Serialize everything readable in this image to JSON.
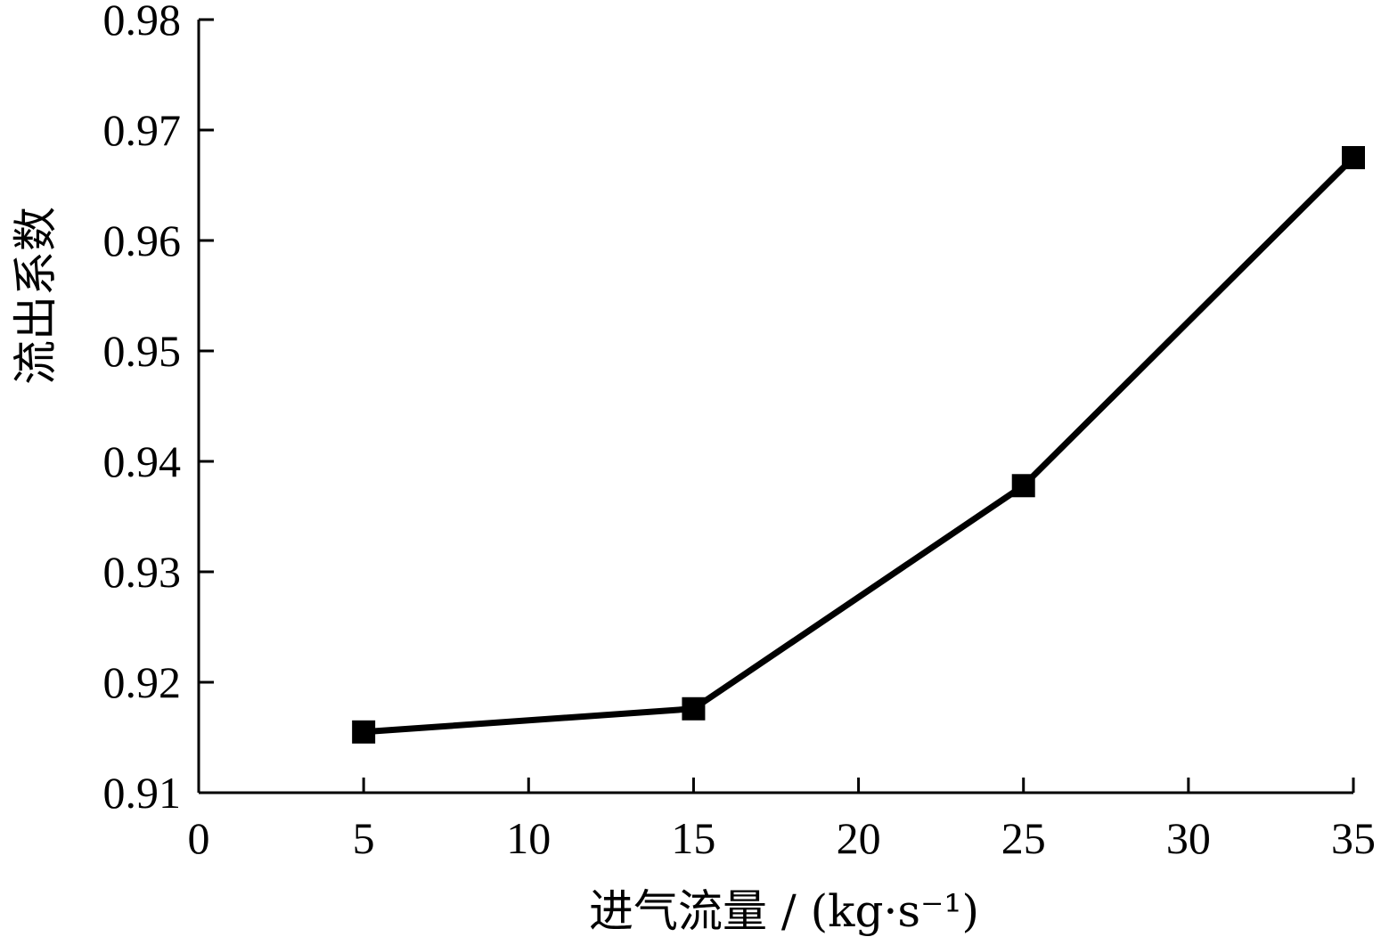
{
  "chart_data": {
    "type": "line",
    "title": "",
    "xlabel": "进气流量 / (kg·s⁻¹)",
    "ylabel": "流出系数",
    "xlim": [
      0,
      35
    ],
    "ylim": [
      0.91,
      0.98
    ],
    "x_ticks": [
      0,
      5,
      10,
      15,
      20,
      25,
      30,
      35
    ],
    "x_tick_labels": [
      "0",
      "5",
      "10",
      "15",
      "20",
      "25",
      "30",
      "35"
    ],
    "y_ticks": [
      0.91,
      0.92,
      0.93,
      0.94,
      0.95,
      0.96,
      0.97,
      0.98
    ],
    "y_tick_labels": [
      "0.91",
      "0.92",
      "0.93",
      "0.94",
      "0.95",
      "0.96",
      "0.97",
      "0.98"
    ],
    "grid": false,
    "legend": "none",
    "marker": "square",
    "line_color": "#000000",
    "series": [
      {
        "x": [
          5,
          15,
          25,
          35
        ],
        "y": [
          0.9155,
          0.9176,
          0.9378,
          0.9675
        ]
      }
    ]
  }
}
